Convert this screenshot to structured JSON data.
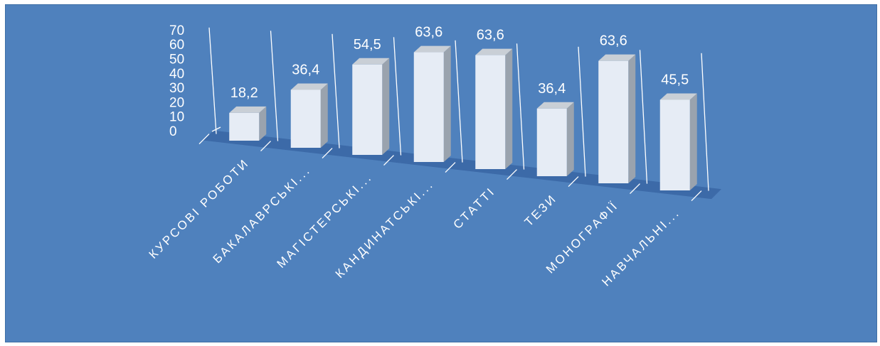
{
  "chart_data": {
    "type": "bar",
    "categories": [
      "КУРСОВІ РОБОТИ",
      "БАКАЛАВРСЬКІ...",
      "МАГІСТЕРСЬКІ...",
      "КАНДИНАТСЬКІ...",
      "СТАТТІ",
      "ТЕЗИ",
      "МОНОГРАФІЇ",
      "НАВЧАЛЬНІ..."
    ],
    "values": [
      18.2,
      36.4,
      54.5,
      63.6,
      63.6,
      36.4,
      63.6,
      45.5
    ],
    "value_labels": [
      "18,2",
      "36,4",
      "54,5",
      "63,6",
      "63,6",
      "36,4",
      "63,6",
      "45,5"
    ],
    "y_ticks": [
      "0",
      "10",
      "20",
      "30",
      "40",
      "50",
      "60",
      "70"
    ],
    "ylim": [
      0,
      70
    ],
    "title": "",
    "xlabel": "",
    "ylabel": "",
    "style": "3d-column",
    "grid": false,
    "colors": {
      "background": "#4f81bd",
      "bar_front": "#e6ecf5",
      "bar_side": "#9aa3ae",
      "bar_top": "#c9cfd6",
      "floor": "#3c6aa8",
      "text": "#ffffff",
      "wall_lines": "#ffffff"
    }
  }
}
